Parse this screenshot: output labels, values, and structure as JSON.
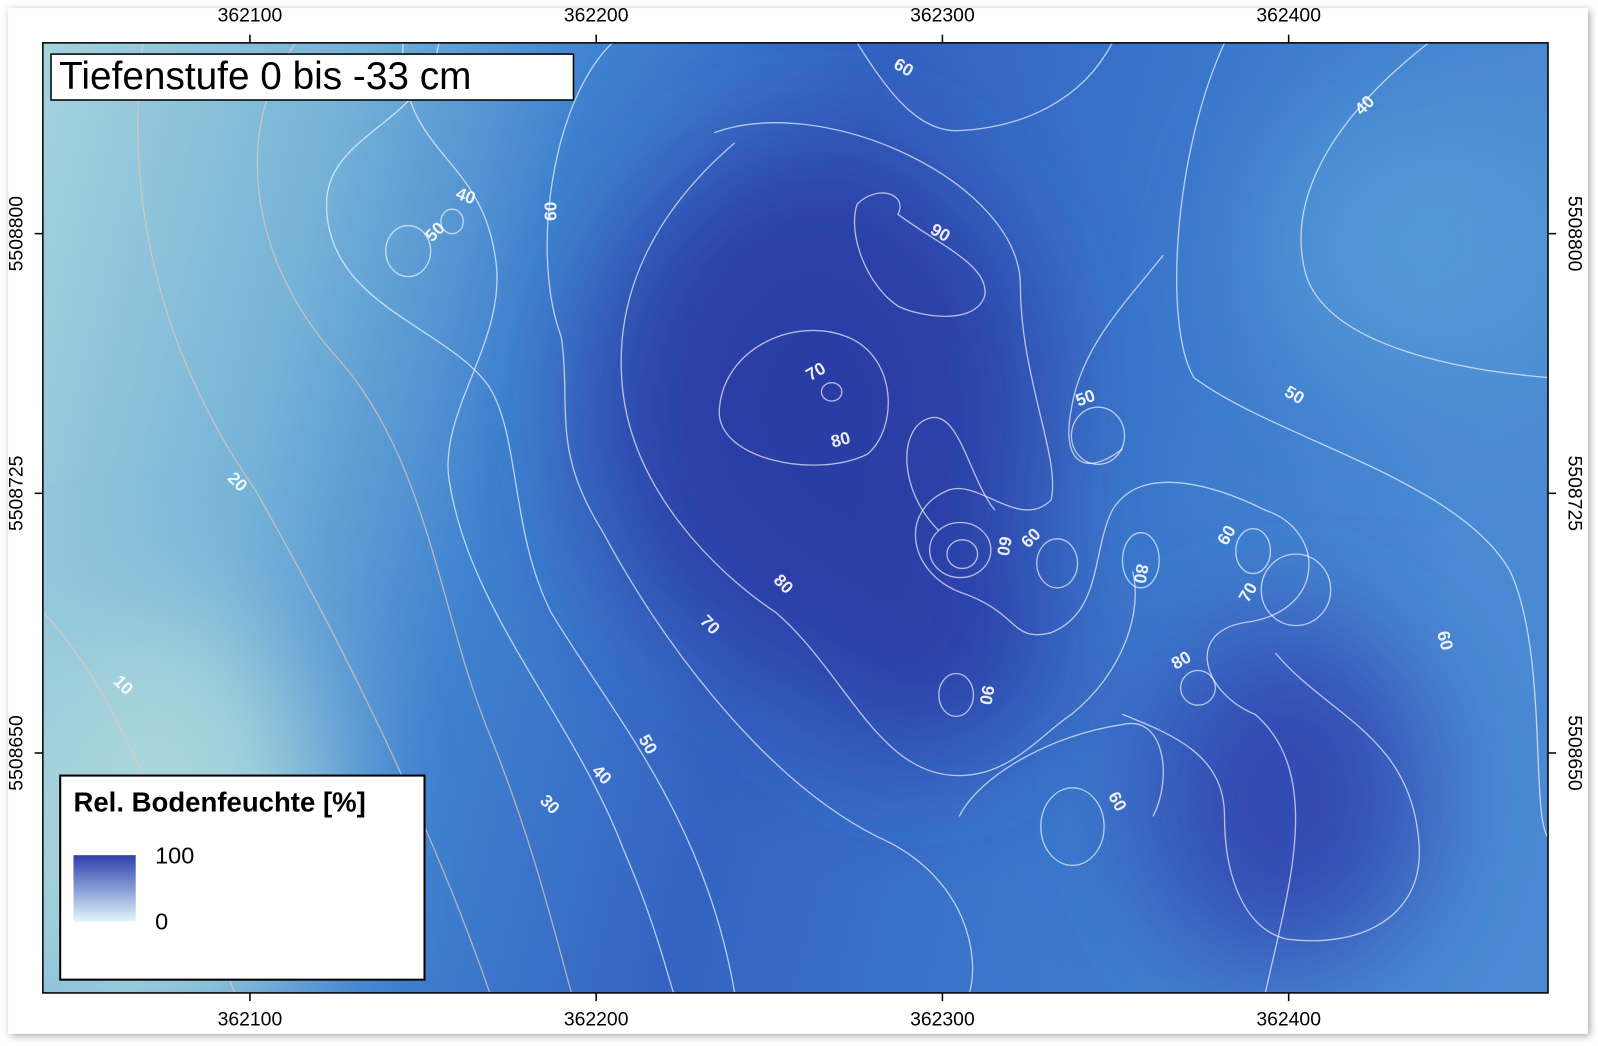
{
  "title": "Tiefenstufe 0 bis -33 cm",
  "map": {
    "xlim": [
      362040.2,
      362474.9
    ],
    "ylim": [
      5508580.7,
      5508855.1
    ],
    "xticks": [
      362100,
      362200,
      362300,
      362400
    ],
    "yticks": [
      5508650,
      5508725,
      5508800
    ]
  },
  "contour_labels": [
    60,
    40,
    40,
    50,
    60,
    90,
    70,
    80,
    50,
    50,
    20,
    60,
    60,
    80,
    60,
    70,
    80,
    70,
    60,
    10,
    80,
    90,
    50,
    40,
    30,
    60
  ],
  "legend": {
    "title": "Rel. Bodenfeuchte [%]",
    "max": 100,
    "min": 0,
    "color_max": "#2d3fae",
    "color_min": "#e0f6fb"
  }
}
